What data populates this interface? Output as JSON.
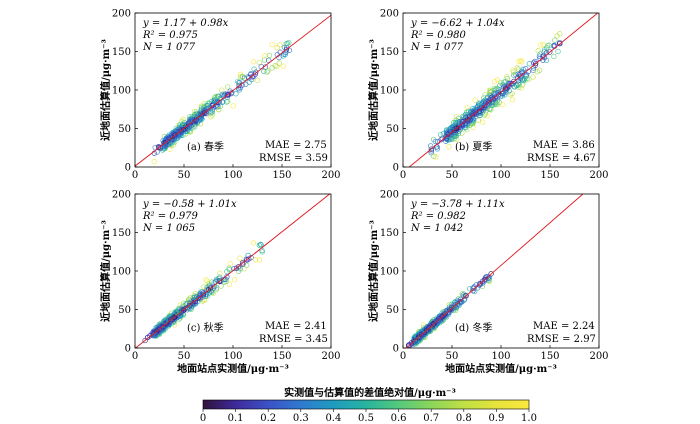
{
  "chart_data": [
    {
      "type": "scatter",
      "panel_label": "(a) 春季",
      "xlim": [
        0,
        200
      ],
      "ylim": [
        0,
        200
      ],
      "xticks": [
        "0",
        "50",
        "100",
        "150",
        "200"
      ],
      "yticks": [
        "0",
        "50",
        "100",
        "150",
        "200"
      ],
      "ylabel": "近地面估算值/μg·m⁻³",
      "xlabel": "",
      "regression": {
        "intercept": 1.17,
        "slope": 0.98
      },
      "stats": {
        "eq": "y = 1.17 + 0.98x",
        "r2": "R² = 0.975",
        "n": "N = 1 077",
        "mae": "MAE = 2.75",
        "rmse": "RMSE = 3.59"
      },
      "cloud": {
        "x_min": 18,
        "x_max": 160,
        "x_mode": 55,
        "y_spread": 4.5
      }
    },
    {
      "type": "scatter",
      "panel_label": "(b) 夏季",
      "xlim": [
        0,
        200
      ],
      "ylim": [
        0,
        200
      ],
      "xticks": [
        "0",
        "50",
        "100",
        "150",
        "200"
      ],
      "yticks": [
        "0",
        "50",
        "100",
        "150",
        "200"
      ],
      "ylabel": "近地面估算值/μg·m⁻³",
      "xlabel": "",
      "regression": {
        "intercept": -6.62,
        "slope": 1.04
      },
      "stats": {
        "eq": "y = −6.62 + 1.04x",
        "r2": "R² = 0.980",
        "n": "N = 1 077",
        "mae": "MAE = 3.86",
        "rmse": "RMSE = 4.67"
      },
      "cloud": {
        "x_min": 28,
        "x_max": 160,
        "x_mode": 80,
        "y_spread": 5.5
      }
    },
    {
      "type": "scatter",
      "panel_label": "(c) 秋季",
      "xlim": [
        0,
        200
      ],
      "ylim": [
        0,
        200
      ],
      "xticks": [
        "0",
        "50",
        "100",
        "150",
        "200"
      ],
      "yticks": [
        "0",
        "50",
        "100",
        "150",
        "200"
      ],
      "ylabel": "近地面估算值/μg·m⁻³",
      "xlabel": "地面站点实测值/μg·m⁻³",
      "regression": {
        "intercept": -0.58,
        "slope": 1.01
      },
      "stats": {
        "eq": "y = −0.58 + 1.01x",
        "r2": "R² = 0.979",
        "n": "N = 1 065",
        "mae": "MAE = 2.41",
        "rmse": "RMSE = 3.45"
      },
      "cloud": {
        "x_min": 10,
        "x_max": 130,
        "x_mode": 40,
        "y_spread": 3.5
      }
    },
    {
      "type": "scatter",
      "panel_label": "(d) 冬季",
      "xlim": [
        0,
        200
      ],
      "ylim": [
        0,
        200
      ],
      "xticks": [
        "0",
        "50",
        "100",
        "150",
        "200"
      ],
      "yticks": [
        "0",
        "50",
        "100",
        "150",
        "200"
      ],
      "ylabel": "近地面估算值/μg·m⁻³",
      "xlabel": "地面站点实测值/μg·m⁻³",
      "regression": {
        "intercept": -3.78,
        "slope": 1.11
      },
      "stats": {
        "eq": "y = −3.78 + 1.11x",
        "r2": "R² = 0.982",
        "n": "N = 1 042",
        "mae": "MAE = 2.24",
        "rmse": "RMSE = 2.97"
      },
      "cloud": {
        "x_min": 5,
        "x_max": 90,
        "x_mode": 25,
        "y_spread": 3
      }
    }
  ],
  "colorbar": {
    "title": "实测值与估算值的差值绝对值/μg·m⁻³",
    "ticks": [
      "0",
      "0.1",
      "0.2",
      "0.3",
      "0.4",
      "0.5",
      "0.6",
      "0.7",
      "0.8",
      "0.9",
      "1.0"
    ],
    "range": [
      0,
      1
    ],
    "stops": [
      "#30123b",
      "#3f2a9a",
      "#3b52c6",
      "#2f7ad0",
      "#1f9bbf",
      "#27b4a0",
      "#55c97c",
      "#8bd65a",
      "#bfe045",
      "#e6e33c",
      "#fbe93f"
    ]
  },
  "colors": {
    "fit_line": "#e0161b",
    "frame": "#000000"
  }
}
